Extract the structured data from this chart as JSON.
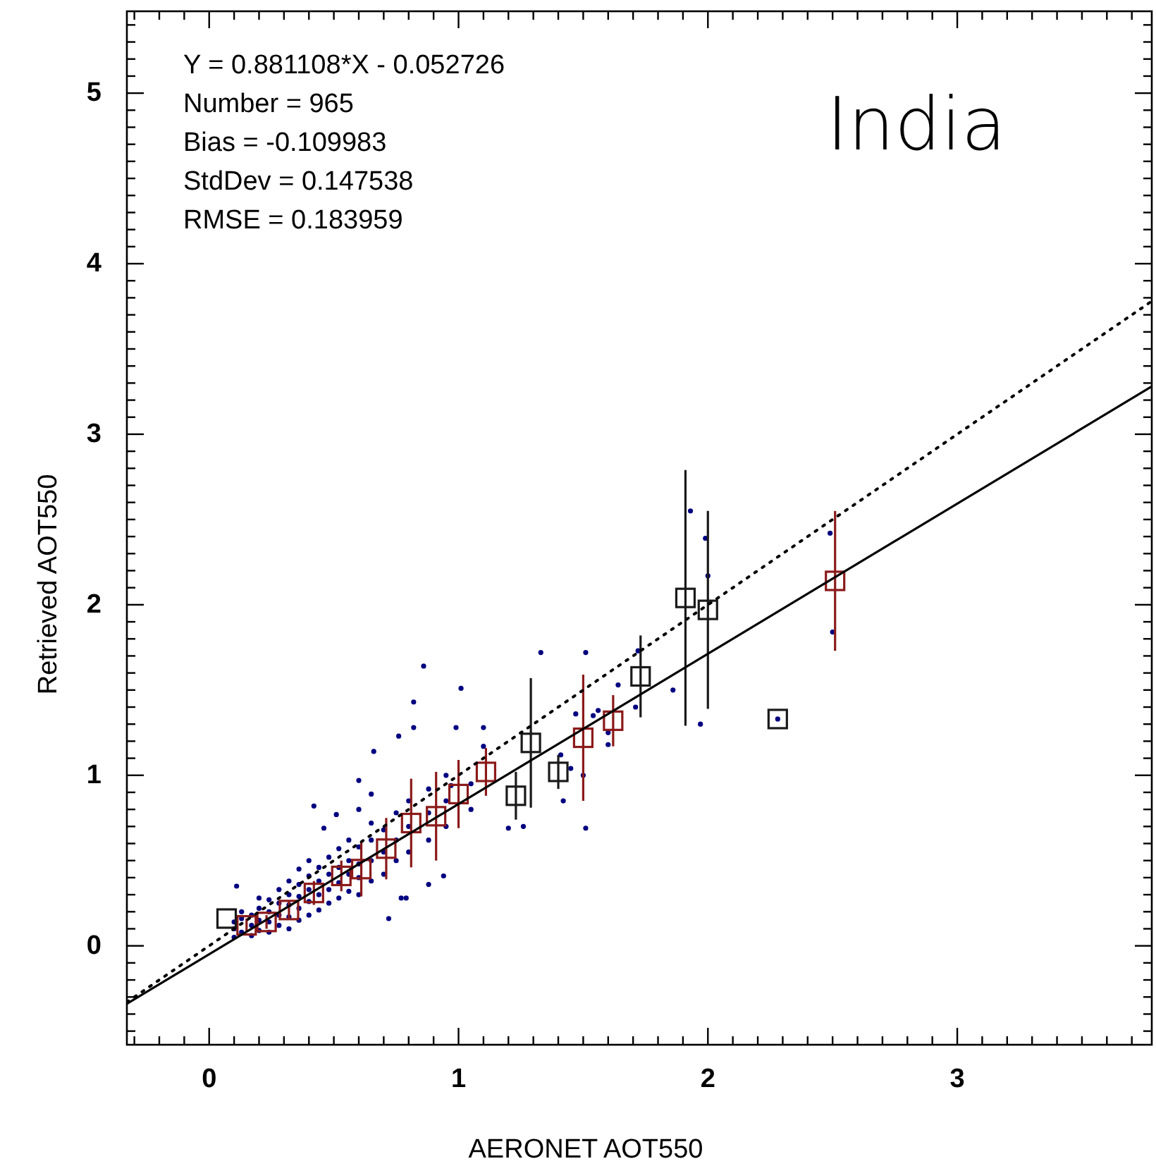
{
  "chart_data": {
    "type": "scatter",
    "title": "India",
    "xlabel": "AERONET AOT550",
    "ylabel": "Retrieved AOT550",
    "annotations": [
      "Y = 0.881108*X - 0.052726",
      "Number = 965",
      "Bias = -0.109983",
      "StdDev = 0.147538",
      "RMSE = 0.183959"
    ],
    "xlim": [
      -0.33,
      3.78
    ],
    "ylim": [
      -0.58,
      5.48
    ],
    "xticks": [
      {
        "value": -0.3,
        "label": null
      },
      {
        "value": -0.2,
        "label": null
      },
      {
        "value": -0.1,
        "label": null
      },
      0,
      {
        "value": 0.1,
        "label": null
      },
      {
        "value": 0.2,
        "label": null
      },
      {
        "value": 0.3,
        "label": null
      },
      {
        "value": 0.4,
        "label": null
      },
      {
        "value": 0.5,
        "label": null
      },
      {
        "value": 0.6,
        "label": null
      },
      {
        "value": 0.7,
        "label": null
      },
      {
        "value": 0.8,
        "label": null
      },
      {
        "value": 0.9,
        "label": null
      },
      1,
      {
        "value": 1.1,
        "label": null
      },
      {
        "value": 1.2,
        "label": null
      },
      {
        "value": 1.3,
        "label": null
      },
      {
        "value": 1.4,
        "label": null
      },
      {
        "value": 1.5,
        "label": null
      },
      {
        "value": 1.6,
        "label": null
      },
      {
        "value": 1.7,
        "label": null
      },
      {
        "value": 1.8,
        "label": null
      },
      {
        "value": 1.9,
        "label": null
      },
      2,
      {
        "value": 2.1,
        "label": null
      },
      {
        "value": 2.2,
        "label": null
      },
      {
        "value": 2.3,
        "label": null
      },
      {
        "value": 2.4,
        "label": null
      },
      {
        "value": 2.5,
        "label": null
      },
      {
        "value": 2.6,
        "label": null
      },
      {
        "value": 2.7,
        "label": null
      },
      {
        "value": 2.8,
        "label": null
      },
      {
        "value": 2.9,
        "label": null
      },
      3,
      {
        "value": 3.1,
        "label": null
      },
      {
        "value": 3.2,
        "label": null
      },
      {
        "value": 3.3,
        "label": null
      },
      {
        "value": 3.4,
        "label": null
      },
      {
        "value": 3.5,
        "label": null
      },
      {
        "value": 3.6,
        "label": null
      },
      {
        "value": 3.7,
        "label": null
      }
    ],
    "yticks": [
      {
        "value": -0.5,
        "label": null
      },
      {
        "value": -0.4,
        "label": null
      },
      {
        "value": -0.3,
        "label": null
      },
      {
        "value": -0.2,
        "label": null
      },
      {
        "value": -0.1,
        "label": null
      },
      0,
      {
        "value": 0.1,
        "label": null
      },
      {
        "value": 0.2,
        "label": null
      },
      {
        "value": 0.3,
        "label": null
      },
      {
        "value": 0.4,
        "label": null
      },
      {
        "value": 0.5,
        "label": null
      },
      {
        "value": 0.6,
        "label": null
      },
      {
        "value": 0.7,
        "label": null
      },
      {
        "value": 0.8,
        "label": null
      },
      {
        "value": 0.9,
        "label": null
      },
      1,
      {
        "value": 1.1,
        "label": null
      },
      {
        "value": 1.2,
        "label": null
      },
      {
        "value": 1.3,
        "label": null
      },
      {
        "value": 1.4,
        "label": null
      },
      {
        "value": 1.5,
        "label": null
      },
      {
        "value": 1.6,
        "label": null
      },
      {
        "value": 1.7,
        "label": null
      },
      {
        "value": 1.8,
        "label": null
      },
      {
        "value": 1.9,
        "label": null
      },
      2,
      {
        "value": 2.1,
        "label": null
      },
      {
        "value": 2.2,
        "label": null
      },
      {
        "value": 2.3,
        "label": null
      },
      {
        "value": 2.4,
        "label": null
      },
      {
        "value": 2.5,
        "label": null
      },
      {
        "value": 2.6,
        "label": null
      },
      {
        "value": 2.7,
        "label": null
      },
      {
        "value": 2.8,
        "label": null
      },
      {
        "value": 2.9,
        "label": null
      },
      3,
      {
        "value": 3.1,
        "label": null
      },
      {
        "value": 3.2,
        "label": null
      },
      {
        "value": 3.3,
        "label": null
      },
      {
        "value": 3.4,
        "label": null
      },
      {
        "value": 3.5,
        "label": null
      },
      {
        "value": 3.6,
        "label": null
      },
      {
        "value": 3.7,
        "label": null
      },
      {
        "value": 3.8,
        "label": null
      },
      {
        "value": 3.9,
        "label": null
      },
      4,
      {
        "value": 4.1,
        "label": null
      },
      {
        "value": 4.2,
        "label": null
      },
      {
        "value": 4.3,
        "label": null
      },
      {
        "value": 4.4,
        "label": null
      },
      {
        "value": 4.5,
        "label": null
      },
      {
        "value": 4.6,
        "label": null
      },
      {
        "value": 4.7,
        "label": null
      },
      {
        "value": 4.8,
        "label": null
      },
      {
        "value": 4.9,
        "label": null
      },
      5,
      {
        "value": 5.1,
        "label": null
      },
      {
        "value": 5.2,
        "label": null
      },
      {
        "value": 5.3,
        "label": null
      },
      {
        "value": 5.4,
        "label": null
      }
    ],
    "grid": false,
    "series": [
      {
        "color": "#000080",
        "marker": "circle",
        "x": [
          0.1,
          0.1,
          0.1,
          0.13,
          0.13,
          0.13,
          0.17,
          0.17,
          0.17,
          0.2,
          0.2,
          0.2,
          0.2,
          0.24,
          0.24,
          0.24,
          0.24,
          0.28,
          0.28,
          0.28,
          0.28,
          0.32,
          0.32,
          0.32,
          0.32,
          0.32,
          0.36,
          0.36,
          0.36,
          0.36,
          0.36,
          0.4,
          0.4,
          0.4,
          0.4,
          0.4,
          0.44,
          0.44,
          0.44,
          0.44,
          0.48,
          0.48,
          0.48,
          0.48,
          0.52,
          0.52,
          0.52,
          0.52,
          0.56,
          0.56,
          0.56,
          0.56,
          0.6,
          0.6,
          0.6,
          0.6,
          0.65,
          0.65,
          0.65,
          0.65,
          0.7,
          0.7,
          0.7,
          0.75,
          0.75,
          0.75,
          0.8,
          0.8,
          0.8,
          0.88,
          0.88,
          0.88,
          0.95,
          0.95,
          0.95,
          1.05,
          1.05,
          0.11,
          0.42,
          0.51,
          0.6,
          0.86,
          0.82,
          0.82,
          0.66,
          0.76,
          1.01,
          0.99,
          1.1,
          1.33,
          1.51,
          1.51,
          0.72,
          0.94,
          0.79,
          0.77,
          0.88,
          1.2,
          1.26,
          1.42,
          1.41,
          1.47,
          1.1,
          0.97,
          0.6,
          0.46,
          0.65,
          1.64,
          1.86,
          1.93,
          1.97,
          1.99,
          2.0,
          2.49,
          2.5,
          2.28,
          1.72,
          1.71,
          1.6,
          1.6,
          1.45,
          1.5,
          1.56,
          1.54
        ],
        "values": [
          0.05,
          0.1,
          0.14,
          0.08,
          0.16,
          0.2,
          0.06,
          0.12,
          0.18,
          0.09,
          0.15,
          0.22,
          0.28,
          0.08,
          0.14,
          0.2,
          0.27,
          0.12,
          0.18,
          0.25,
          0.33,
          0.1,
          0.17,
          0.24,
          0.3,
          0.38,
          0.15,
          0.22,
          0.29,
          0.36,
          0.45,
          0.18,
          0.26,
          0.33,
          0.41,
          0.5,
          0.21,
          0.3,
          0.38,
          0.46,
          0.25,
          0.33,
          0.42,
          0.52,
          0.28,
          0.37,
          0.46,
          0.57,
          0.32,
          0.42,
          0.5,
          0.62,
          0.3,
          0.4,
          0.48,
          0.58,
          0.38,
          0.5,
          0.62,
          0.72,
          0.42,
          0.55,
          0.68,
          0.5,
          0.62,
          0.78,
          0.55,
          0.7,
          0.85,
          0.62,
          0.78,
          0.92,
          0.7,
          0.85,
          1.0,
          0.8,
          0.95,
          0.35,
          0.82,
          0.77,
          0.97,
          1.64,
          1.43,
          1.28,
          1.14,
          1.23,
          1.51,
          1.28,
          1.28,
          1.72,
          1.72,
          0.69,
          0.16,
          0.41,
          0.28,
          0.28,
          0.36,
          0.69,
          0.7,
          0.85,
          1.12,
          1.36,
          1.17,
          0.94,
          0.8,
          0.69,
          0.89,
          1.53,
          1.5,
          2.55,
          1.3,
          2.39,
          2.17,
          2.42,
          1.84,
          1.33,
          1.73,
          1.4,
          1.25,
          1.18,
          1.04,
          1.0,
          1.38,
          1.35
        ]
      },
      {
        "type": "scatter",
        "color": "#8b1a1a",
        "marker": "square",
        "x": [
          0.15,
          0.23,
          0.32,
          0.42,
          0.53,
          0.61,
          0.71,
          0.81,
          0.91,
          1.0,
          1.11,
          1.5,
          1.62,
          2.51
        ],
        "values": [
          0.12,
          0.14,
          0.21,
          0.31,
          0.41,
          0.45,
          0.57,
          0.72,
          0.76,
          0.89,
          1.02,
          1.22,
          1.32,
          2.14
        ],
        "errors": [
          0.04,
          0.04,
          0.05,
          0.07,
          0.09,
          0.16,
          0.18,
          0.26,
          0.26,
          0.2,
          0.14,
          0.37,
          0.15,
          0.41
        ]
      },
      {
        "type": "scatter",
        "color": "#1a1a1a",
        "marker": "square",
        "x": [
          0.07,
          1.23,
          1.29,
          1.4,
          1.73,
          1.91,
          2.0,
          2.28
        ],
        "values": [
          0.16,
          0.88,
          1.19,
          1.02,
          1.58,
          2.04,
          1.97,
          1.33
        ],
        "errors": [
          null,
          0.14,
          0.38,
          0.1,
          0.24,
          0.75,
          0.58,
          null
        ]
      },
      {
        "type": "line",
        "color": "#000000",
        "line_style": "solid",
        "x": [
          -0.33,
          3.78
        ],
        "values": [
          -0.34,
          3.28
        ]
      },
      {
        "type": "line",
        "color": "#000000",
        "line_style": "dotted",
        "x": [
          -0.33,
          3.78
        ],
        "values": [
          -0.33,
          3.78
        ]
      }
    ]
  }
}
